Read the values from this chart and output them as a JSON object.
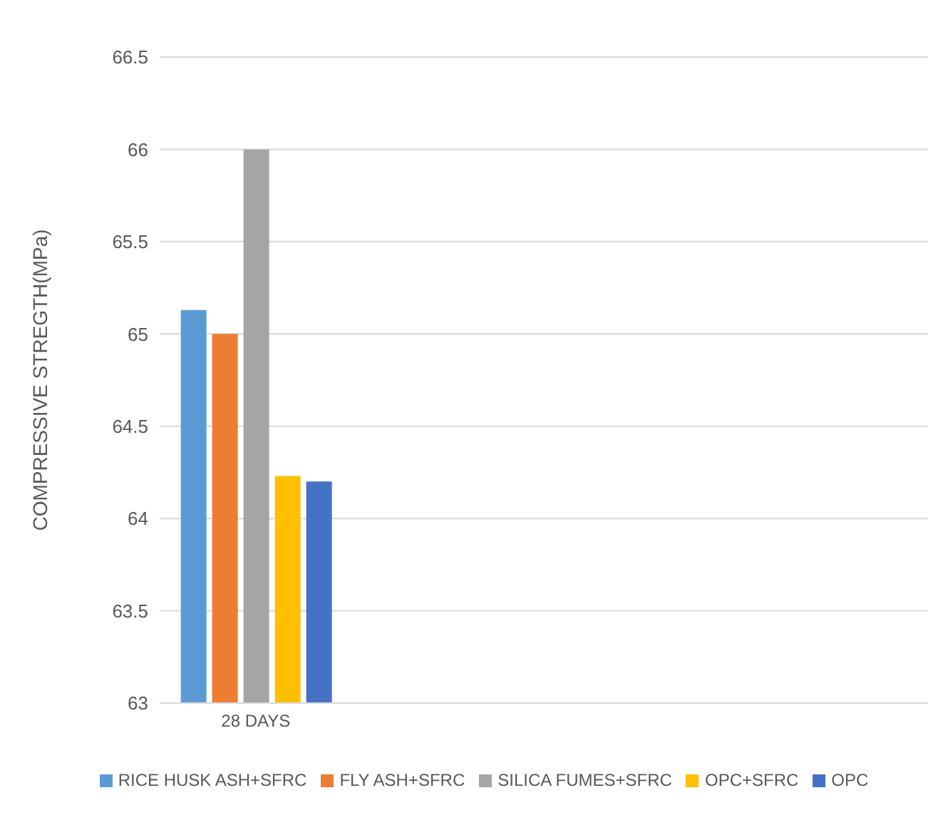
{
  "chart_data": {
    "type": "bar",
    "categories": [
      "28 DAYS",
      null,
      null,
      null
    ],
    "ylabel": "COMPRESSIVE STREGTH(MPa)",
    "series": [
      {
        "name": "RICE HUSK ASH+SFRC",
        "color": "#5b9bd5",
        "values": [
          65.13,
          null,
          null,
          null
        ]
      },
      {
        "name": "FLY ASH+SFRC",
        "color": "#ed7d31",
        "values": [
          65.0,
          null,
          null,
          null
        ]
      },
      {
        "name": "SILICA FUMES+SFRC",
        "color": "#a5a5a5",
        "values": [
          66.0,
          null,
          null,
          null
        ]
      },
      {
        "name": "OPC+SFRC",
        "color": "#ffc000",
        "values": [
          64.23,
          null,
          null,
          null
        ]
      },
      {
        "name": "OPC",
        "color": "#4472c4",
        "values": [
          64.2,
          null,
          null,
          null
        ]
      }
    ],
    "ylim": [
      63,
      66.5
    ],
    "yticks": [
      63,
      63.5,
      64,
      64.5,
      65,
      65.5,
      66,
      66.5
    ],
    "grid": "y",
    "legend": "bottom"
  }
}
